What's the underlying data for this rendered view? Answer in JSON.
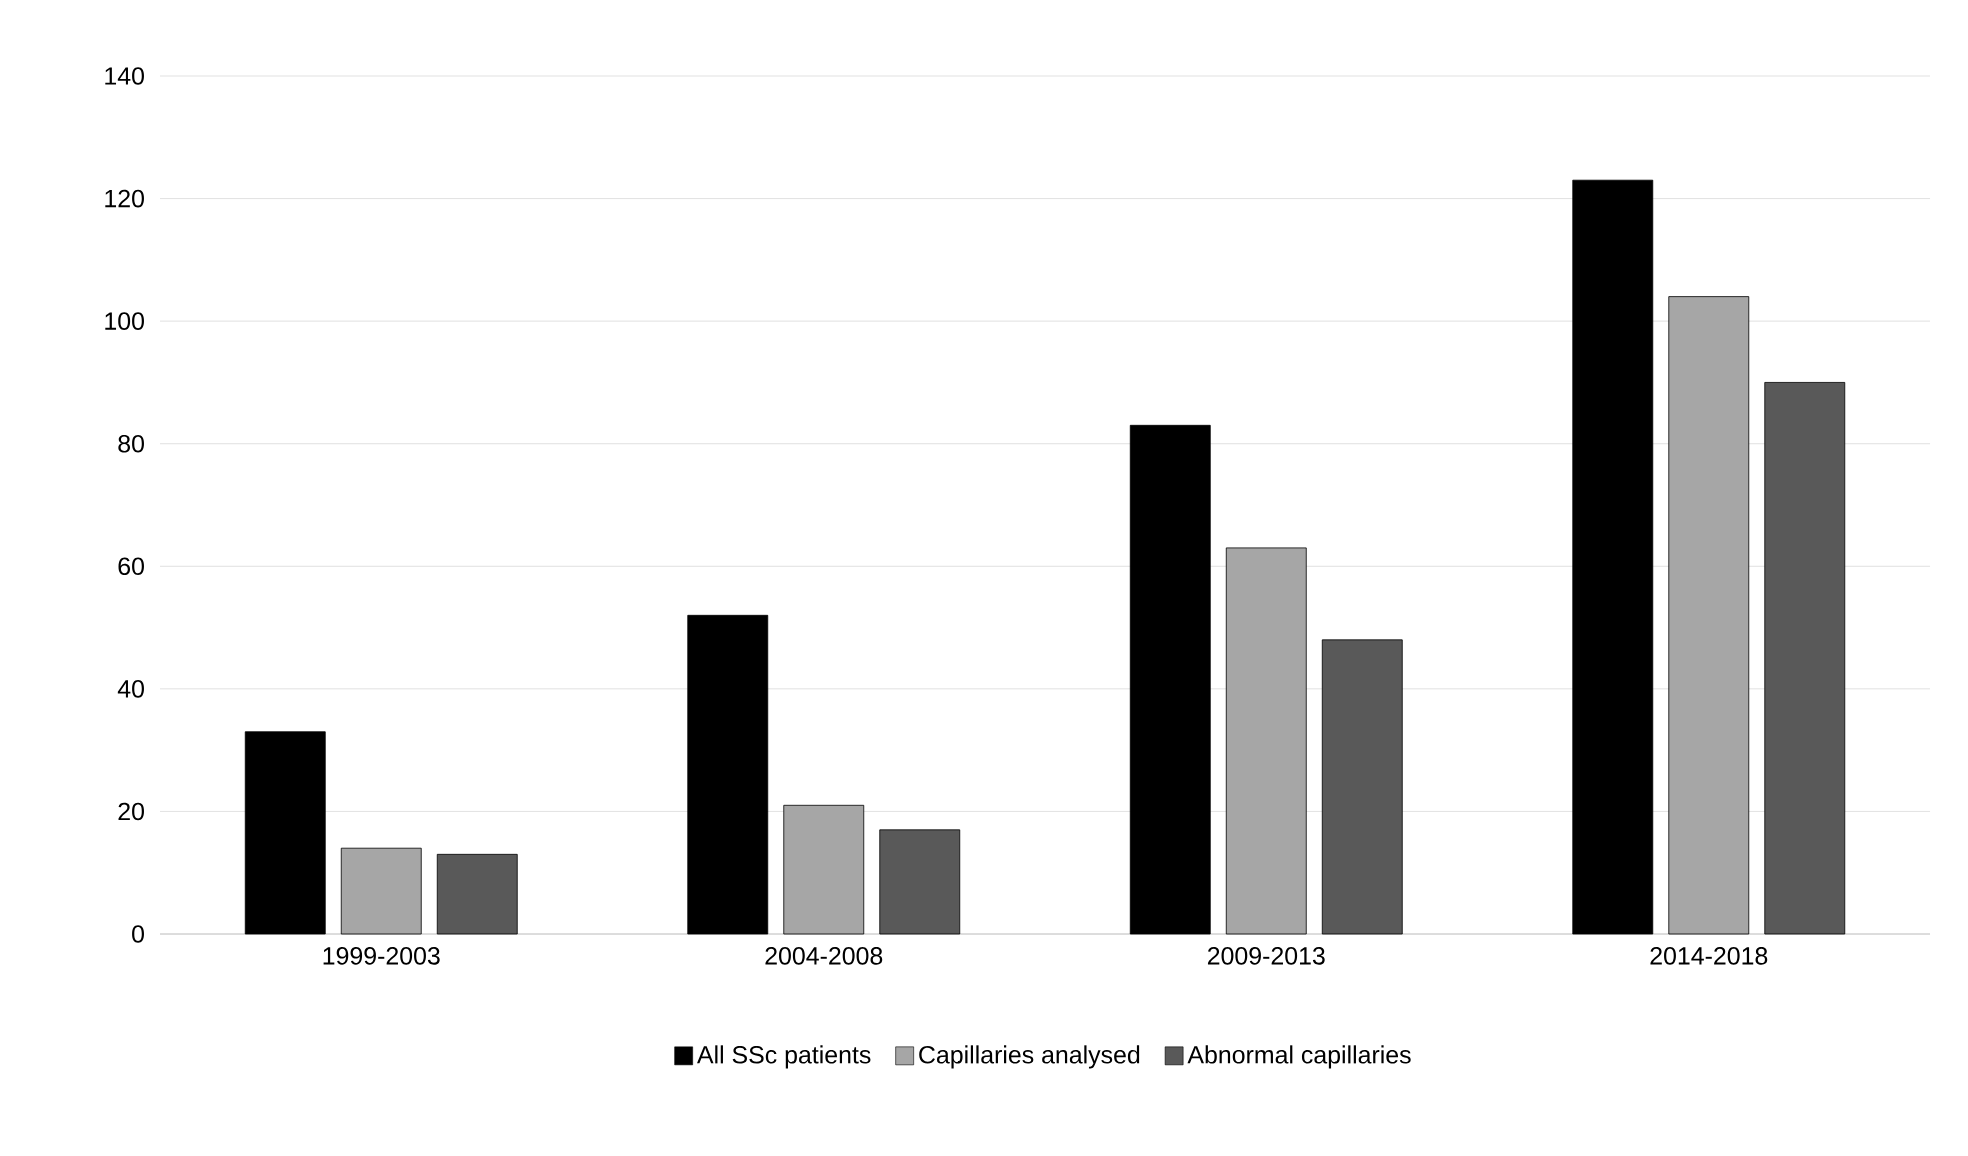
{
  "chart_data": {
    "type": "bar",
    "categories": [
      "1999-2003",
      "2004-2008",
      "2009-2013",
      "2014-2018"
    ],
    "series": [
      {
        "name": "All SSc patients",
        "color": "#000000",
        "values": [
          33,
          52,
          83,
          123
        ]
      },
      {
        "name": "Capillaries analysed",
        "color": "#a6a6a6",
        "values": [
          14,
          21,
          63,
          104
        ]
      },
      {
        "name": "Abnormal capillaries",
        "color": "#595959",
        "values": [
          13,
          17,
          48,
          90
        ]
      }
    ],
    "ylim": [
      0,
      140
    ],
    "yticks": [
      0,
      20,
      40,
      60,
      80,
      100,
      120,
      140
    ],
    "grid": "y",
    "legend": "bottom"
  }
}
